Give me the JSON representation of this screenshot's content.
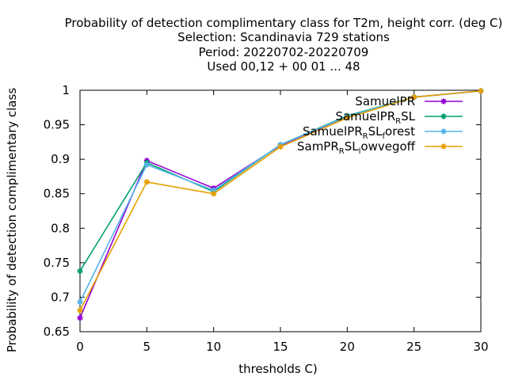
{
  "chart_data": {
    "type": "line",
    "title_lines": [
      "Probability of detection complimentary class  for T2m, height corr. (deg C)",
      "Selection: Scandinavia    729 stations",
      "Period: 20220702-20220709",
      "Used  00,12  + 00 01 ... 48"
    ],
    "xlabel": "thresholds C)",
    "ylabel": "Probability of detection complimentary class",
    "xlim": [
      0,
      30
    ],
    "ylim": [
      0.65,
      1.0
    ],
    "xticks": [
      0,
      5,
      10,
      15,
      20,
      25,
      30
    ],
    "yticks": [
      0.65,
      0.7,
      0.75,
      0.8,
      0.85,
      0.9,
      0.95,
      1.0
    ],
    "x": [
      0,
      5,
      10,
      15,
      20,
      25,
      30
    ],
    "grid": false,
    "legend_position": "top-right",
    "series": [
      {
        "name": "SamuelPR",
        "legend_parts": [
          [
            "SamuelPR",
            ""
          ]
        ],
        "color": "#9400d3",
        "values": [
          0.67,
          0.898,
          0.858,
          0.92,
          0.962,
          0.99,
          0.999
        ]
      },
      {
        "name": "SamuelPR_RSL",
        "legend_parts": [
          [
            "SamuelPR",
            ""
          ],
          [
            "R",
            "sub"
          ],
          [
            "SL",
            ""
          ]
        ],
        "color": "#009e73",
        "values": [
          0.738,
          0.895,
          0.853,
          0.921,
          0.963,
          0.99,
          0.999
        ]
      },
      {
        "name": "SamuelPR_RSL_forest",
        "legend_parts": [
          [
            "SamuelPR",
            ""
          ],
          [
            "R",
            "sub"
          ],
          [
            "SL",
            ""
          ],
          [
            "f",
            "sub"
          ],
          [
            "orest",
            ""
          ]
        ],
        "color": "#56b4e9",
        "values": [
          0.693,
          0.892,
          0.855,
          0.921,
          0.962,
          0.99,
          0.999
        ]
      },
      {
        "name": "SamPR_RSL_lowvegoff",
        "legend_parts": [
          [
            "SamPR",
            ""
          ],
          [
            "R",
            "sub"
          ],
          [
            "SL",
            ""
          ],
          [
            "l",
            "sub"
          ],
          [
            "owvegoff",
            ""
          ]
        ],
        "color": "#e69f00",
        "values": [
          0.681,
          0.867,
          0.85,
          0.918,
          0.96,
          0.99,
          0.999
        ]
      }
    ]
  }
}
